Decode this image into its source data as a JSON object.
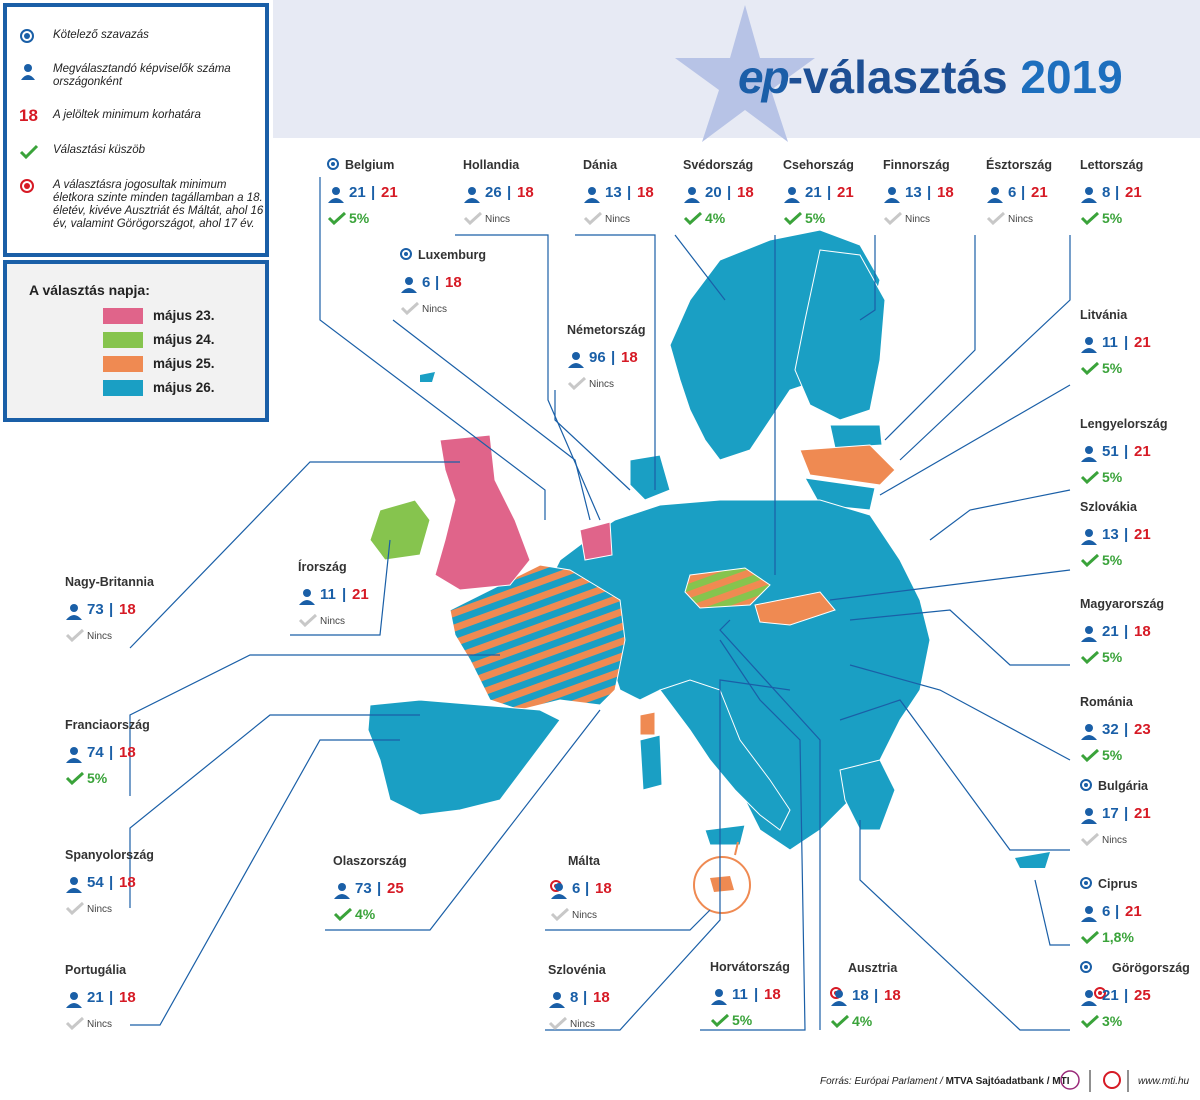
{
  "title": {
    "prefix": "ep",
    "main": "-választás",
    "year": "2019"
  },
  "legend": {
    "mandatory": "Kötelező szavazás",
    "seats": "Megválasztandó képviselők száma országonként",
    "age_number": "18",
    "age": "A jelöltek minimum korhatára",
    "threshold": "Választási küszöb",
    "voter_age": "A választásra jogosultak minimum életkora szinte minden tagállamban a 18. életév, kivéve Ausztriát és Máltát, ahol 16 év, valamint Görögországot, ahol 17 év."
  },
  "election_days": {
    "title": "A választás napja:",
    "days": [
      {
        "label": "május 23.",
        "color": "#e0648a"
      },
      {
        "label": "május 24.",
        "color": "#86c44e"
      },
      {
        "label": "május 25.",
        "color": "#ef8a52"
      },
      {
        "label": "május 26.",
        "color": "#1a9fc4"
      }
    ]
  },
  "countries": [
    {
      "name": "Belgium",
      "seats": "21",
      "age": "21",
      "threshold": "5%",
      "mandatory": true,
      "age_dot": false
    },
    {
      "name": "Hollandia",
      "seats": "26",
      "age": "18",
      "threshold": "Nincs",
      "mandatory": false,
      "age_dot": false
    },
    {
      "name": "Dánia",
      "seats": "13",
      "age": "18",
      "threshold": "Nincs",
      "mandatory": false,
      "age_dot": false
    },
    {
      "name": "Svédország",
      "seats": "20",
      "age": "18",
      "threshold": "4%",
      "mandatory": false,
      "age_dot": false
    },
    {
      "name": "Csehország",
      "seats": "21",
      "age": "21",
      "threshold": "5%",
      "mandatory": false,
      "age_dot": false
    },
    {
      "name": "Finnország",
      "seats": "13",
      "age": "18",
      "threshold": "Nincs",
      "mandatory": false,
      "age_dot": false
    },
    {
      "name": "Észtország",
      "seats": "6",
      "age": "21",
      "threshold": "Nincs",
      "mandatory": false,
      "age_dot": false
    },
    {
      "name": "Lettország",
      "seats": "8",
      "age": "21",
      "threshold": "5%",
      "mandatory": false,
      "age_dot": false
    },
    {
      "name": "Luxemburg",
      "seats": "6",
      "age": "18",
      "threshold": "Nincs",
      "mandatory": true,
      "age_dot": false
    },
    {
      "name": "Németország",
      "seats": "96",
      "age": "18",
      "threshold": "Nincs",
      "mandatory": false,
      "age_dot": false
    },
    {
      "name": "Litvánia",
      "seats": "11",
      "age": "21",
      "threshold": "5%",
      "mandatory": false,
      "age_dot": false
    },
    {
      "name": "Lengyelország",
      "seats": "51",
      "age": "21",
      "threshold": "5%",
      "mandatory": false,
      "age_dot": false
    },
    {
      "name": "Szlovákia",
      "seats": "13",
      "age": "21",
      "threshold": "5%",
      "mandatory": false,
      "age_dot": false
    },
    {
      "name": "Nagy-Britannia",
      "seats": "73",
      "age": "18",
      "threshold": "Nincs",
      "mandatory": false,
      "age_dot": false
    },
    {
      "name": "Írország",
      "seats": "11",
      "age": "21",
      "threshold": "Nincs",
      "mandatory": false,
      "age_dot": false
    },
    {
      "name": "Magyarország",
      "seats": "21",
      "age": "18",
      "threshold": "5%",
      "mandatory": false,
      "age_dot": false
    },
    {
      "name": "Franciaország",
      "seats": "74",
      "age": "18",
      "threshold": "5%",
      "mandatory": false,
      "age_dot": false
    },
    {
      "name": "Románia",
      "seats": "32",
      "age": "23",
      "threshold": "5%",
      "mandatory": false,
      "age_dot": false
    },
    {
      "name": "Bulgária",
      "seats": "17",
      "age": "21",
      "threshold": "Nincs",
      "mandatory": true,
      "age_dot": false
    },
    {
      "name": "Spanyolország",
      "seats": "54",
      "age": "18",
      "threshold": "Nincs",
      "mandatory": false,
      "age_dot": false
    },
    {
      "name": "Olaszország",
      "seats": "73",
      "age": "25",
      "threshold": "4%",
      "mandatory": false,
      "age_dot": false
    },
    {
      "name": "Málta",
      "seats": "6",
      "age": "18",
      "threshold": "Nincs",
      "mandatory": false,
      "age_dot": true
    },
    {
      "name": "Ciprus",
      "seats": "6",
      "age": "21",
      "threshold": "1,8%",
      "mandatory": true,
      "age_dot": false
    },
    {
      "name": "Portugália",
      "seats": "21",
      "age": "18",
      "threshold": "Nincs",
      "mandatory": false,
      "age_dot": false
    },
    {
      "name": "Szlovénia",
      "seats": "8",
      "age": "18",
      "threshold": "Nincs",
      "mandatory": false,
      "age_dot": false
    },
    {
      "name": "Horvátország",
      "seats": "11",
      "age": "18",
      "threshold": "5%",
      "mandatory": false,
      "age_dot": false
    },
    {
      "name": "Ausztria",
      "seats": "18",
      "age": "18",
      "threshold": "4%",
      "mandatory": false,
      "age_dot": true
    },
    {
      "name": "Görögország",
      "seats": "21",
      "age": "25",
      "threshold": "3%",
      "mandatory": true,
      "age_dot": true
    }
  ],
  "footer": {
    "source_prefix": "Forrás: Európai Parlament / ",
    "source_org": "MTVA Sajtóadatbank / MTI",
    "site": "www.mti.hu"
  },
  "colors": {
    "blue": "#1a5fa7",
    "red": "#d61a25",
    "green": "#3aa33a",
    "map_base": "#1a9fc4"
  }
}
